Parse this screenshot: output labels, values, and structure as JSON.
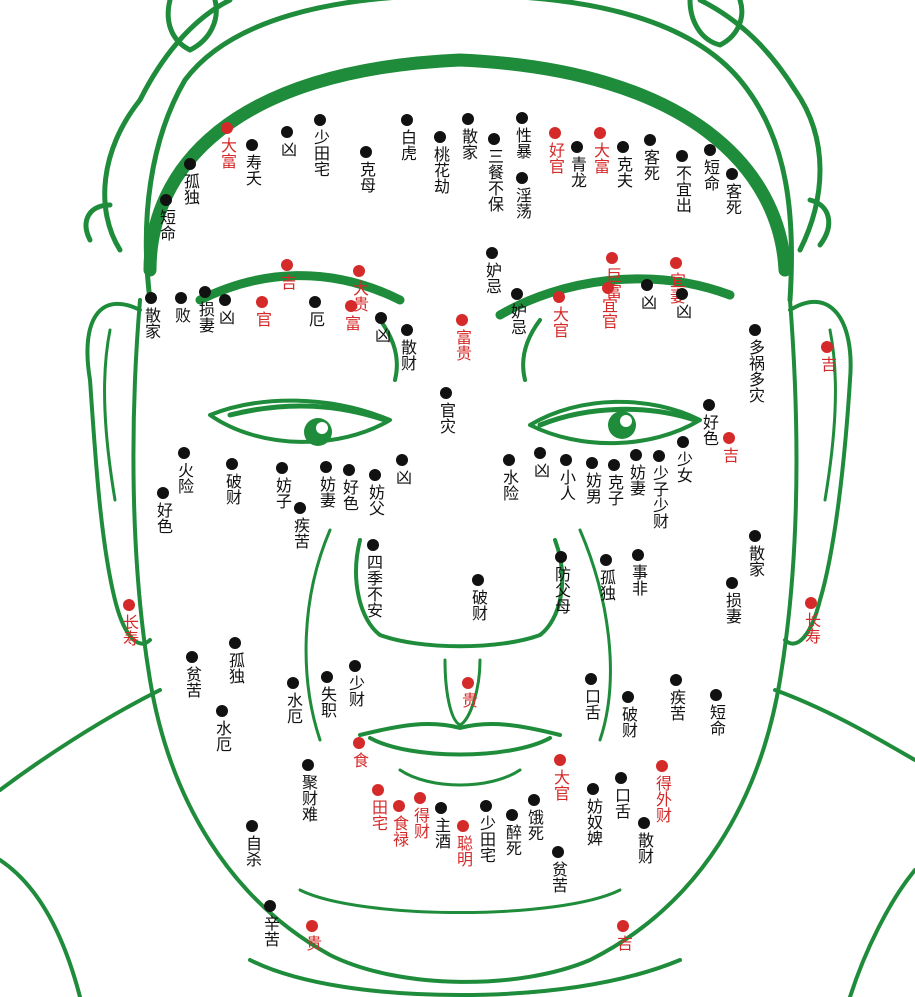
{
  "colors": {
    "line": "#1e8c3a",
    "black_dot": "#111111",
    "red_dot": "#d42a2a",
    "background": "#ffffff"
  },
  "moles": [
    {
      "label": "大富",
      "tone": "red"
    },
    {
      "label": "寿夭",
      "tone": "black"
    },
    {
      "label": "凶",
      "tone": "black"
    },
    {
      "label": "少田宅",
      "tone": "black"
    },
    {
      "label": "克母",
      "tone": "black"
    },
    {
      "label": "白虎",
      "tone": "black"
    },
    {
      "label": "桃花劫",
      "tone": "black"
    },
    {
      "label": "散家",
      "tone": "black"
    },
    {
      "label": "三餐不保",
      "tone": "black"
    },
    {
      "label": "性暴",
      "tone": "black"
    },
    {
      "label": "淫荡",
      "tone": "black"
    },
    {
      "label": "好官",
      "tone": "red"
    },
    {
      "label": "青龙",
      "tone": "black"
    },
    {
      "label": "大富",
      "tone": "red"
    },
    {
      "label": "克夫",
      "tone": "black"
    },
    {
      "label": "客死",
      "tone": "black"
    },
    {
      "label": "不宜出",
      "tone": "black"
    },
    {
      "label": "短命",
      "tone": "black"
    },
    {
      "label": "客死",
      "tone": "black"
    },
    {
      "label": "孤独",
      "tone": "black"
    },
    {
      "label": "短命",
      "tone": "black"
    },
    {
      "label": "吉",
      "tone": "red"
    },
    {
      "label": "大贵",
      "tone": "red"
    },
    {
      "label": "妒忌",
      "tone": "black"
    },
    {
      "label": "巨富",
      "tone": "red"
    },
    {
      "label": "宜妻",
      "tone": "red"
    },
    {
      "label": "散家",
      "tone": "black"
    },
    {
      "label": "败",
      "tone": "black"
    },
    {
      "label": "损妻",
      "tone": "black"
    },
    {
      "label": "凶",
      "tone": "black"
    },
    {
      "label": "官",
      "tone": "red"
    },
    {
      "label": "厄",
      "tone": "black"
    },
    {
      "label": "富",
      "tone": "red"
    },
    {
      "label": "凶",
      "tone": "black"
    },
    {
      "label": "散财",
      "tone": "black"
    },
    {
      "label": "富贵",
      "tone": "red"
    },
    {
      "label": "妒忌",
      "tone": "black"
    },
    {
      "label": "大官",
      "tone": "red"
    },
    {
      "label": "宜官",
      "tone": "red"
    },
    {
      "label": "凶",
      "tone": "black"
    },
    {
      "label": "凶",
      "tone": "black"
    },
    {
      "label": "多祸多灾",
      "tone": "black"
    },
    {
      "label": "吉",
      "tone": "red"
    },
    {
      "label": "官灾",
      "tone": "black"
    },
    {
      "label": "好色",
      "tone": "black"
    },
    {
      "label": "吉",
      "tone": "red"
    },
    {
      "label": "火险",
      "tone": "black"
    },
    {
      "label": "好色",
      "tone": "black"
    },
    {
      "label": "破财",
      "tone": "black"
    },
    {
      "label": "妨子",
      "tone": "black"
    },
    {
      "label": "疾苦",
      "tone": "black"
    },
    {
      "label": "妨妻",
      "tone": "black"
    },
    {
      "label": "好色",
      "tone": "black"
    },
    {
      "label": "妨父",
      "tone": "black"
    },
    {
      "label": "凶",
      "tone": "black"
    },
    {
      "label": "水险",
      "tone": "black"
    },
    {
      "label": "凶",
      "tone": "black"
    },
    {
      "label": "小人",
      "tone": "black"
    },
    {
      "label": "妨男",
      "tone": "black"
    },
    {
      "label": "克子",
      "tone": "black"
    },
    {
      "label": "妨妻",
      "tone": "black"
    },
    {
      "label": "少子少财",
      "tone": "black"
    },
    {
      "label": "少女",
      "tone": "black"
    },
    {
      "label": "四季不安",
      "tone": "black"
    },
    {
      "label": "破财",
      "tone": "black"
    },
    {
      "label": "防父母",
      "tone": "black"
    },
    {
      "label": "孤独",
      "tone": "black"
    },
    {
      "label": "事非",
      "tone": "black"
    },
    {
      "label": "散家",
      "tone": "black"
    },
    {
      "label": "损妻",
      "tone": "black"
    },
    {
      "label": "长寿",
      "tone": "red"
    },
    {
      "label": "长寿",
      "tone": "red"
    },
    {
      "label": "孤独",
      "tone": "black"
    },
    {
      "label": "贫苦",
      "tone": "black"
    },
    {
      "label": "水厄",
      "tone": "black"
    },
    {
      "label": "水厄",
      "tone": "black"
    },
    {
      "label": "失职",
      "tone": "black"
    },
    {
      "label": "少财",
      "tone": "black"
    },
    {
      "label": "贵",
      "tone": "red"
    },
    {
      "label": "口舌",
      "tone": "black"
    },
    {
      "label": "破财",
      "tone": "black"
    },
    {
      "label": "疾苦",
      "tone": "black"
    },
    {
      "label": "短命",
      "tone": "black"
    },
    {
      "label": "食",
      "tone": "red"
    },
    {
      "label": "聚财难",
      "tone": "black"
    },
    {
      "label": "田宅",
      "tone": "red"
    },
    {
      "label": "食禄",
      "tone": "red"
    },
    {
      "label": "得财",
      "tone": "red"
    },
    {
      "label": "主酒",
      "tone": "black"
    },
    {
      "label": "聪明",
      "tone": "red"
    },
    {
      "label": "少田宅",
      "tone": "black"
    },
    {
      "label": "醉死",
      "tone": "black"
    },
    {
      "label": "饿死",
      "tone": "black"
    },
    {
      "label": "大官",
      "tone": "red"
    },
    {
      "label": "妨奴婢",
      "tone": "black"
    },
    {
      "label": "口舌",
      "tone": "black"
    },
    {
      "label": "得外财",
      "tone": "red"
    },
    {
      "label": "散财",
      "tone": "black"
    },
    {
      "label": "贫苦",
      "tone": "black"
    },
    {
      "label": "自杀",
      "tone": "black"
    },
    {
      "label": "辛苦",
      "tone": "black"
    },
    {
      "label": "贵",
      "tone": "red"
    },
    {
      "label": "吉",
      "tone": "red"
    }
  ]
}
